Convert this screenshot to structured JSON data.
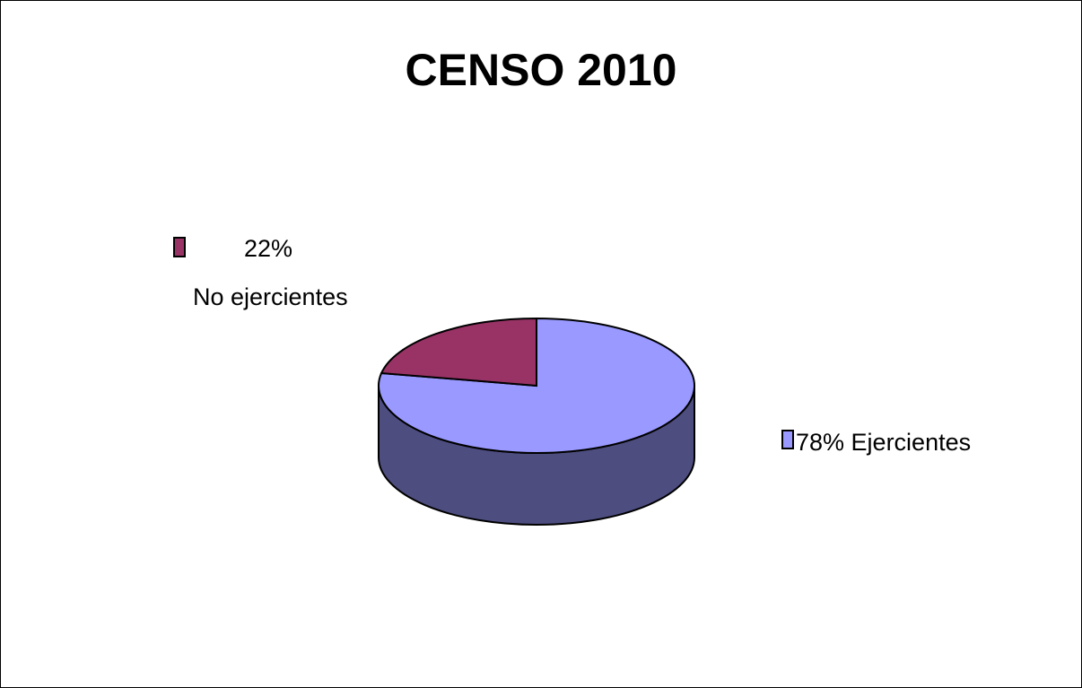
{
  "chart_data": {
    "type": "pie",
    "style": "3d",
    "title": "CENSO 2010",
    "slices": [
      {
        "name": "Ejercientes",
        "value": 78,
        "pct_label": "78%",
        "label": "78% Ejercientes",
        "color": "#9999ff",
        "side_color": "#4d4d80"
      },
      {
        "name": "No ejercientes",
        "value": 22,
        "pct_label": "22%",
        "label": "No ejercientes",
        "color": "#993366",
        "side_color": "#4d1a33"
      }
    ]
  }
}
